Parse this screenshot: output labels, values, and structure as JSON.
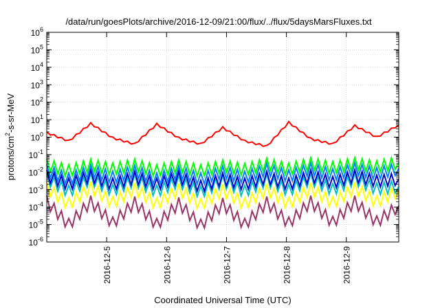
{
  "chart_data": {
    "type": "line",
    "title": "/data/run/goesPlots/archive/2016-12-09/21:00/flux/../flux/5daysMarsFluxes.txt",
    "xlabel": "Coordinated Universal Time (UTC)",
    "ylabel": {
      "base": "protons/cm",
      "sup": "2",
      "rest": "-s-sr-MeV"
    },
    "y_scale": "log",
    "ylim": [
      1e-06,
      1000000.0
    ],
    "xlim": [
      "2016-12-04T00:00",
      "2016-12-09T21:00"
    ],
    "x_ticks": [
      "2016-12-5",
      "2016-12-6",
      "2016-12-7",
      "2016-12-8",
      "2016-12-9"
    ],
    "y_ticks": [
      {
        "base": "10",
        "exp": "6"
      },
      {
        "base": "10",
        "exp": "5"
      },
      {
        "base": "10",
        "exp": "4"
      },
      {
        "base": "10",
        "exp": "3"
      },
      {
        "base": "10",
        "exp": "2"
      },
      {
        "base": "10",
        "exp": "1"
      },
      {
        "base": "10",
        "exp": "0"
      },
      {
        "base": "10",
        "exp": "-1"
      },
      {
        "base": "10",
        "exp": "-2"
      },
      {
        "base": "10",
        "exp": "-3"
      },
      {
        "base": "10",
        "exp": "-4"
      },
      {
        "base": "10",
        "exp": "-5"
      },
      {
        "base": "10",
        "exp": "-6"
      }
    ],
    "grid": true,
    "series": [
      {
        "color": "#ff0000",
        "values": [
          1.8,
          0.6,
          6.0,
          0.9,
          0.4,
          5.5,
          0.9,
          0.4,
          3.5,
          0.6,
          0.3,
          7.0,
          0.8,
          0.4,
          4.5,
          1.0,
          5.0
        ]
      },
      {
        "color": "#00ff00",
        "values": [
          0.025,
          0.012,
          0.025,
          0.015,
          0.025,
          0.012,
          0.022,
          0.012,
          0.022,
          0.014,
          0.028,
          0.015,
          0.03,
          0.018,
          0.03,
          0.02,
          0.035
        ]
      },
      {
        "color": "#0080ff",
        "values": [
          0.012,
          0.004,
          0.012,
          0.005,
          0.011,
          0.004,
          0.01,
          0.004,
          0.01,
          0.005,
          0.014,
          0.006,
          0.015,
          0.007,
          0.015,
          0.008,
          0.016
        ]
      },
      {
        "color": "#0000cc",
        "values": [
          0.006,
          0.002,
          0.006,
          0.002,
          0.005,
          0.002,
          0.005,
          0.0015,
          0.004,
          0.002,
          0.005,
          0.002,
          0.006,
          0.0025,
          0.006,
          0.003,
          0.004
        ]
      },
      {
        "color": "#00c0c0",
        "values": [
          0.004,
          0.0008,
          0.004,
          0.0009,
          0.0035,
          0.0008,
          0.003,
          0.0007,
          0.003,
          0.0008,
          0.0035,
          0.0009,
          0.004,
          0.001,
          0.004,
          0.0011,
          0.0015
        ]
      },
      {
        "color": "#ffff00",
        "values": [
          0.0012,
          0.00015,
          0.0013,
          0.00018,
          0.0011,
          0.00015,
          0.001,
          0.00014,
          0.0009,
          0.00015,
          0.001,
          0.00016,
          0.0011,
          0.00018,
          0.0012,
          0.0002,
          0.0009
        ]
      },
      {
        "color": "#993366",
        "values": [
          0.0002,
          1e-05,
          0.0002,
          1.2e-05,
          0.00018,
          1e-05,
          0.00016,
          9e-06,
          0.00015,
          1e-05,
          0.00018,
          1.2e-05,
          0.0002,
          1.3e-05,
          0.0002,
          1.4e-05,
          0.00012
        ]
      }
    ]
  }
}
